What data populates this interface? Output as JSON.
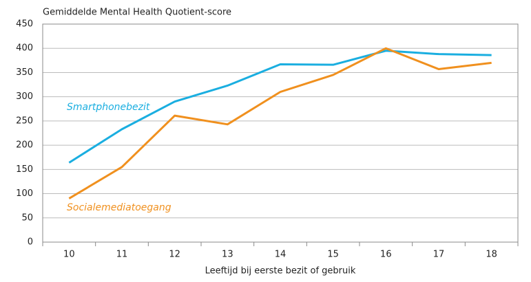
{
  "chart_data": {
    "type": "line",
    "title": "Gemiddelde Mental Health Quotient-score",
    "xlabel": "Leeftijd bij eerste bezit of gebruik",
    "categories": [
      "10",
      "11",
      "12",
      "13",
      "14",
      "15",
      "16",
      "17",
      "18"
    ],
    "series": [
      {
        "name": "Smartphonebezit",
        "color": "#1aaee0",
        "values": [
          164,
          233,
          290,
          323,
          367,
          366,
          395,
          388,
          386
        ]
      },
      {
        "name": "Socialemediatoegang",
        "color": "#f0901e",
        "values": [
          90,
          155,
          261,
          243,
          310,
          345,
          400,
          357,
          370
        ]
      }
    ],
    "ylim": [
      0,
      450
    ],
    "yticks": [
      0,
      50,
      100,
      150,
      200,
      250,
      300,
      350,
      400,
      450
    ],
    "grid": true
  }
}
